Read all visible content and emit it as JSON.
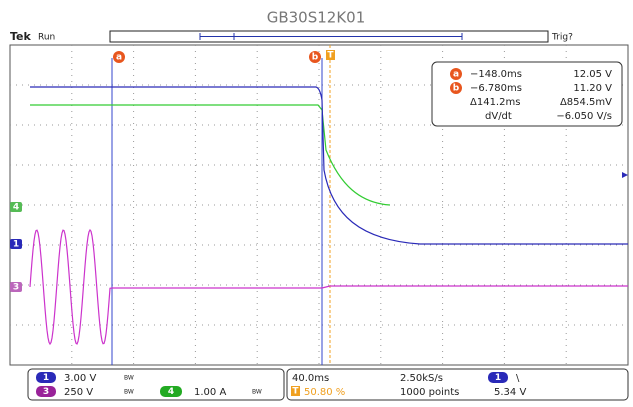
{
  "header": {
    "title": "GB30S12K01",
    "brand": "Tek",
    "state": "Run",
    "trigger_state": "Trig?"
  },
  "markers": {
    "cursor_a": "a",
    "cursor_b": "b",
    "trigger": "T"
  },
  "readout": {
    "a": {
      "time": "−148.0ms",
      "value": "12.05 V"
    },
    "b": {
      "time": "−6.780ms",
      "value": "11.20 V"
    },
    "delta": {
      "time": "Δ141.2ms",
      "value": "Δ854.5mV"
    },
    "slope": {
      "label": "dV/dt",
      "value": "−6.050 V/s"
    }
  },
  "channels": [
    {
      "number": "1",
      "scale": "3.00 V",
      "bandwidth": "BW"
    },
    {
      "number": "3",
      "scale": "250 V",
      "bandwidth": "BW"
    },
    {
      "number": "4",
      "scale": "1.00 A",
      "bandwidth": "BW"
    }
  ],
  "ground_markers": [
    "4",
    "1",
    "3"
  ],
  "acquisition": {
    "time_per_div": "40.0ms",
    "sample_rate": "2.50kS/s",
    "trigger_channel": "1",
    "trigger_slope": "\\",
    "trigger_position_marker": "T",
    "trigger_position": "50.80 %",
    "record_length": "1000 points",
    "trigger_level": "5.34 V"
  }
}
